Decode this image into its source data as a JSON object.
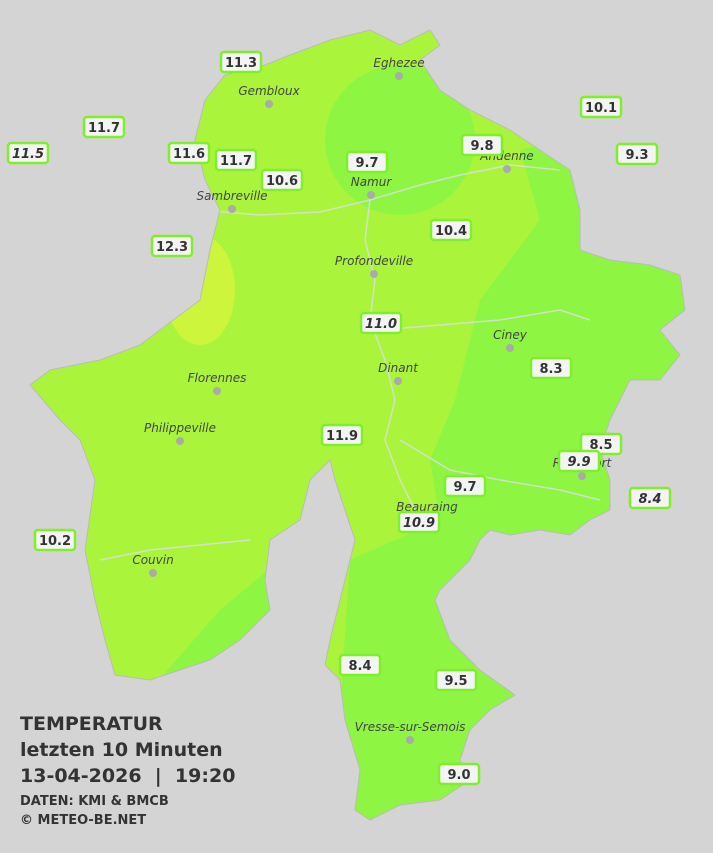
{
  "title": {
    "line1": "TEMPERATUR",
    "line2": "letzten 10 Minuten",
    "line3": "13-04-2026  |  19:20",
    "source": "DATEN: KMI & BMCB",
    "copyright": "© METEO-BE.NET"
  },
  "cities": [
    "Eghezee",
    "Gembloux",
    "Andenne",
    "Namur",
    "Sambreville",
    "Profondeville",
    "Ciney",
    "Dinant",
    "Florennes",
    "Philippeville",
    "Rochefort",
    "Beauraing",
    "Couvin",
    "Vresse-sur-Semois"
  ],
  "stations": [
    "11.3",
    "11.7",
    "11.5",
    "11.6",
    "11.7",
    "10.6",
    "9.7",
    "9.8",
    "10.1",
    "9.3",
    "12.3",
    "10.4",
    "11.0",
    "8.3",
    "11.9",
    "8.5",
    "9.9",
    "9.7",
    "8.4",
    "10.9",
    "10.2",
    "8.4",
    "9.5",
    "9.0"
  ]
}
